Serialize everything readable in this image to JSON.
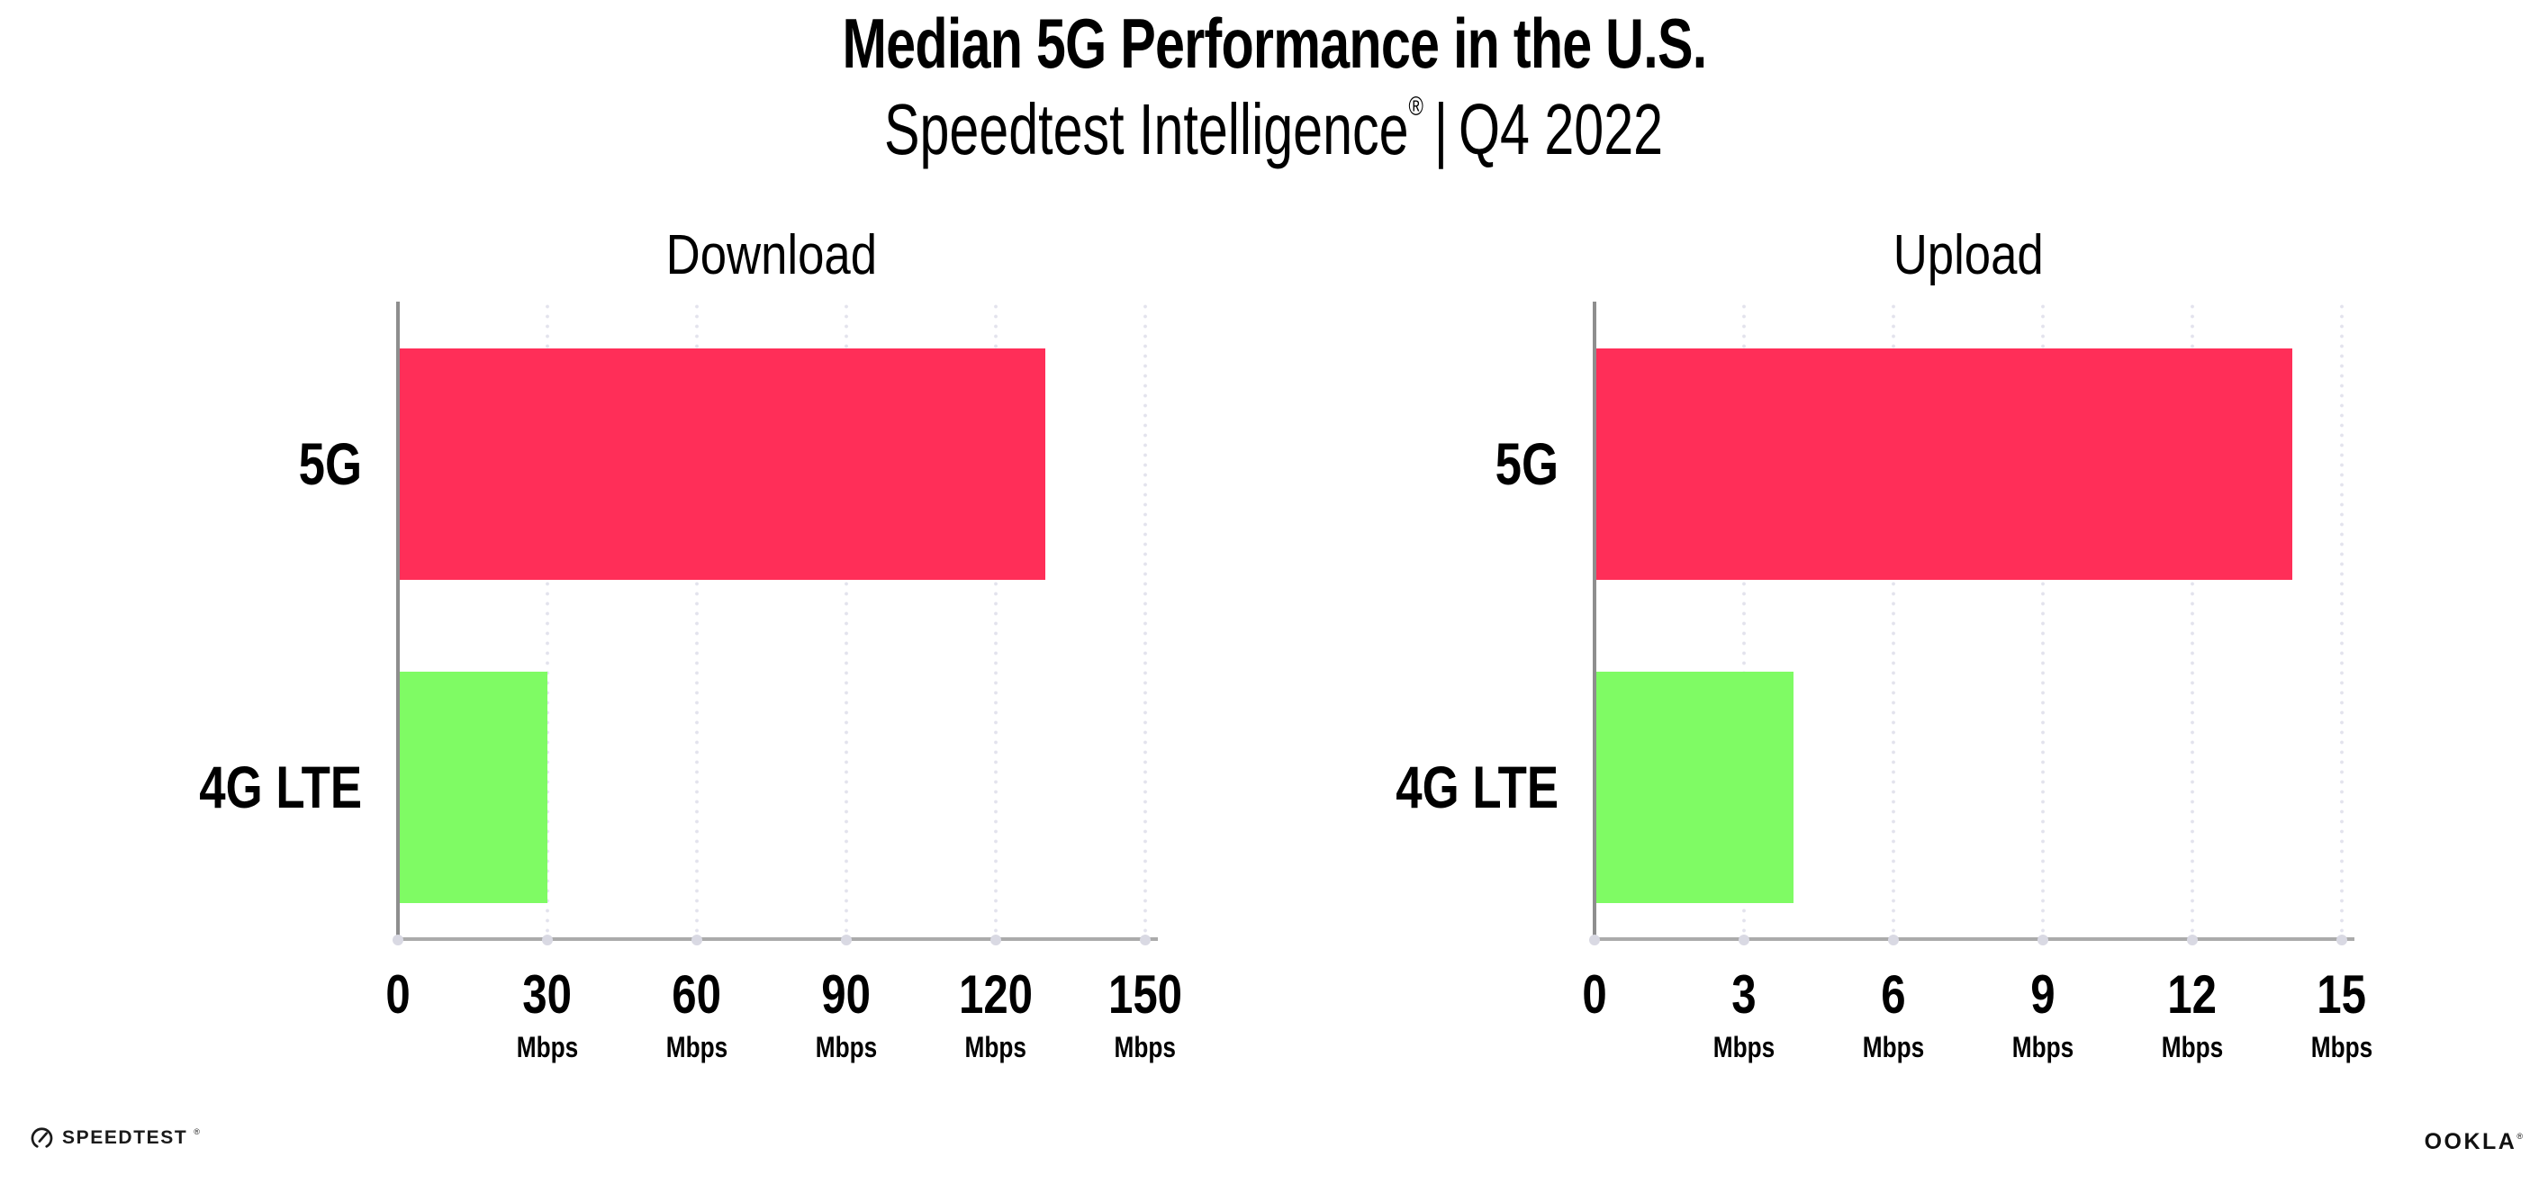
{
  "header": {
    "title": "Median 5G Performance in the U.S.",
    "subtitle_product": "Speedtest Intelligence",
    "subtitle_registered": "®",
    "subtitle_separator": "|",
    "subtitle_period": "Q4 2022"
  },
  "colors": {
    "bar_5g": "#FF2E58",
    "bar_4g_lte": "#7FFB64",
    "gridline": "#E3E3ED",
    "axis_y": "#8E8E8E",
    "axis_x": "#ABABAB",
    "axis_tick_dot": "#D9D9E3",
    "text": "#000000"
  },
  "chart_data": [
    {
      "type": "bar",
      "orientation": "horizontal",
      "title": "Download",
      "categories": [
        "5G",
        "4G LTE"
      ],
      "values": [
        130,
        30
      ],
      "bar_colors": [
        "#FF2E58",
        "#7FFB64"
      ],
      "xlim": [
        0,
        150
      ],
      "xticks": [
        0,
        30,
        60,
        90,
        120,
        150
      ],
      "tick_unit": "Mbps",
      "grid": "dotted-vertical",
      "legend": "none"
    },
    {
      "type": "bar",
      "orientation": "horizontal",
      "title": "Upload",
      "categories": [
        "5G",
        "4G LTE"
      ],
      "values": [
        14,
        4
      ],
      "bar_colors": [
        "#FF2E58",
        "#7FFB64"
      ],
      "xlim": [
        0,
        15
      ],
      "xticks": [
        0,
        3,
        6,
        9,
        12,
        15
      ],
      "tick_unit": "Mbps",
      "grid": "dotted-vertical",
      "legend": "none"
    }
  ],
  "footer": {
    "speedtest_icon": "gauge-icon",
    "speedtest_logo_text": "SPEEDTEST",
    "speedtest_registered": "®",
    "ookla_logo_text": "OOKLA",
    "ookla_registered": "®"
  }
}
